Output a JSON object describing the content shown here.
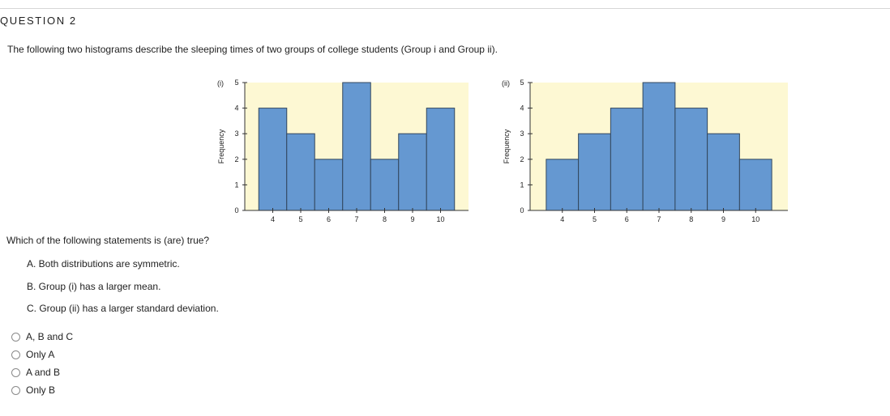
{
  "question": {
    "title": "QUESTION 2",
    "stem": "The following two histograms describe the sleeping times of two groups of college students (Group i and Group ii).",
    "prompt": "Which of the following statements is (are) true?",
    "statements": [
      "A. Both distributions are symmetric.",
      "B. Group (i) has a larger mean.",
      "C. Group (ii) has a larger standard deviation."
    ],
    "options": [
      "A, B and C",
      "Only A",
      "A and B",
      "Only B"
    ]
  },
  "colors": {
    "bar_fill": "#6598d1",
    "bar_stroke": "#33475e",
    "plot_bg": "#fdf8d3"
  },
  "chart_data": [
    {
      "type": "bar",
      "panel_label": "(i)",
      "ylabel": "Frequency",
      "x_ticks": [
        4,
        5,
        6,
        7,
        8,
        9,
        10
      ],
      "y_ticks": [
        0,
        1,
        2,
        3,
        4,
        5
      ],
      "bins": [
        [
          3.5,
          4.5
        ],
        [
          4.5,
          5.5
        ],
        [
          5.5,
          6.5
        ],
        [
          6.5,
          7.5
        ],
        [
          7.5,
          8.5
        ],
        [
          8.5,
          9.5
        ],
        [
          9.5,
          10.5
        ]
      ],
      "values": [
        4,
        3,
        2,
        5,
        2,
        3,
        4
      ],
      "xlim": [
        3,
        11
      ],
      "ylim": [
        0,
        5
      ]
    },
    {
      "type": "bar",
      "panel_label": "(ii)",
      "ylabel": "Frequency",
      "x_ticks": [
        4,
        5,
        6,
        7,
        8,
        9,
        10
      ],
      "y_ticks": [
        0,
        1,
        2,
        3,
        4,
        5
      ],
      "bins": [
        [
          3.5,
          4.5
        ],
        [
          4.5,
          5.5
        ],
        [
          5.5,
          6.5
        ],
        [
          6.5,
          7.5
        ],
        [
          7.5,
          8.5
        ],
        [
          8.5,
          9.5
        ],
        [
          9.5,
          10.5
        ]
      ],
      "values": [
        2,
        3,
        4,
        5,
        4,
        3,
        2
      ],
      "xlim": [
        3,
        11
      ],
      "ylim": [
        0,
        5
      ]
    }
  ]
}
